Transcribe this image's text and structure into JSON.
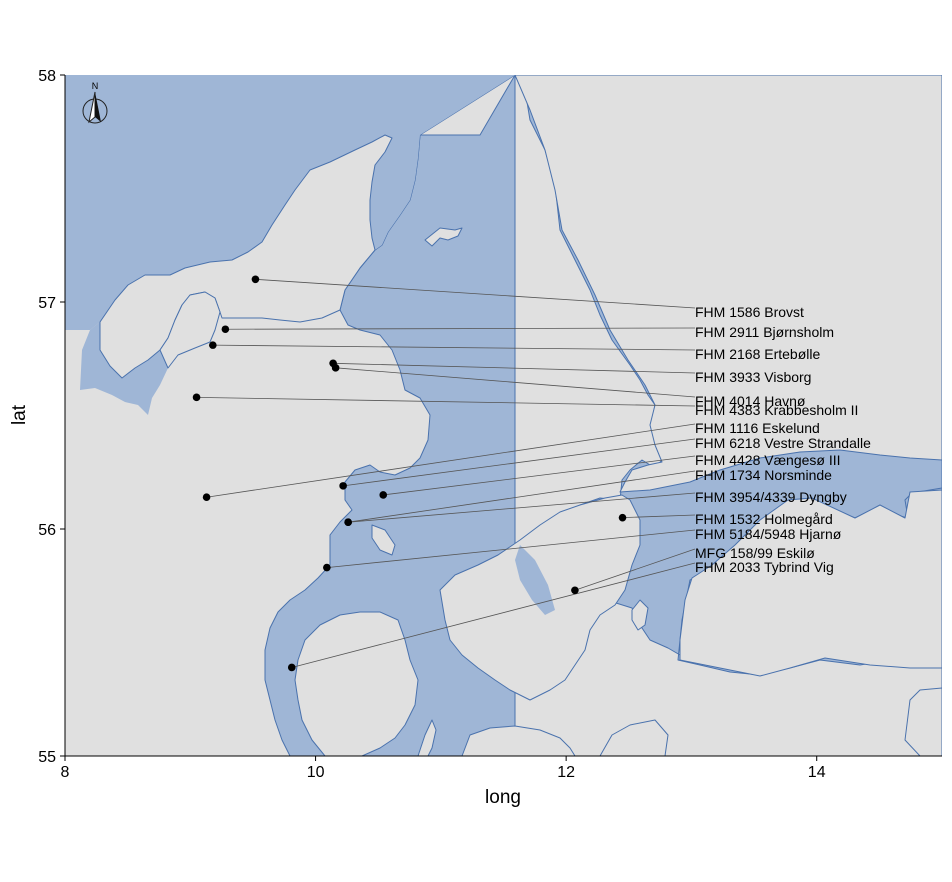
{
  "map": {
    "x_axis": {
      "title": "long",
      "ticks": [
        "8",
        "10",
        "12",
        "14"
      ],
      "range": [
        8,
        15
      ]
    },
    "y_axis": {
      "title": "lat",
      "ticks": [
        "55",
        "56",
        "57",
        "58"
      ],
      "range": [
        55,
        58
      ]
    },
    "north_arrow_label": "N",
    "colors": {
      "sea": "#9fb6d6",
      "land": "#e0e0e0",
      "coast": "#4a72ad",
      "point": "#000000",
      "leader": "#555555"
    },
    "icons": {
      "north_arrow": "compass-north-arrow-icon"
    }
  },
  "sites": [
    {
      "label": "FHM 1586 Brovst",
      "long": 9.52,
      "lat": 57.1
    },
    {
      "label": "FHM 2911 Bjørnsholm",
      "long": 9.28,
      "lat": 56.88
    },
    {
      "label": "FHM 2168 Ertebølle",
      "long": 9.18,
      "lat": 56.81
    },
    {
      "label": "FHM 3933 Visborg",
      "long": 10.14,
      "lat": 56.73
    },
    {
      "label": "FHM 4014 Havnø",
      "long": 10.16,
      "lat": 56.71
    },
    {
      "label": "FHM 4383 Krabbesholm II",
      "long": 9.05,
      "lat": 56.58
    },
    {
      "label": "FHM 1116 Eskelund",
      "long": 9.13,
      "lat": 56.14
    },
    {
      "label": "FHM 6218 Vestre Strandalle",
      "long": 10.22,
      "lat": 56.19
    },
    {
      "label": "FHM 4428 Vængesø III",
      "long": 10.54,
      "lat": 56.15
    },
    {
      "label": "FHM 1734 Norsminde",
      "long": 10.26,
      "lat": 56.03
    },
    {
      "label": "FHM 3954/4339 Dyngby",
      "long": 10.26,
      "lat": 56.03
    },
    {
      "label": "FHM 1532 Holmegård",
      "long": 12.45,
      "lat": 56.05
    },
    {
      "label": "FHM 5184/5948 Hjarnø",
      "long": 10.09,
      "lat": 55.83
    },
    {
      "label": "MFG 158/99 Eskilø",
      "long": 12.07,
      "lat": 55.73
    },
    {
      "label": "FHM 2033 Tybrind Vig",
      "long": 9.81,
      "lat": 55.39
    }
  ]
}
